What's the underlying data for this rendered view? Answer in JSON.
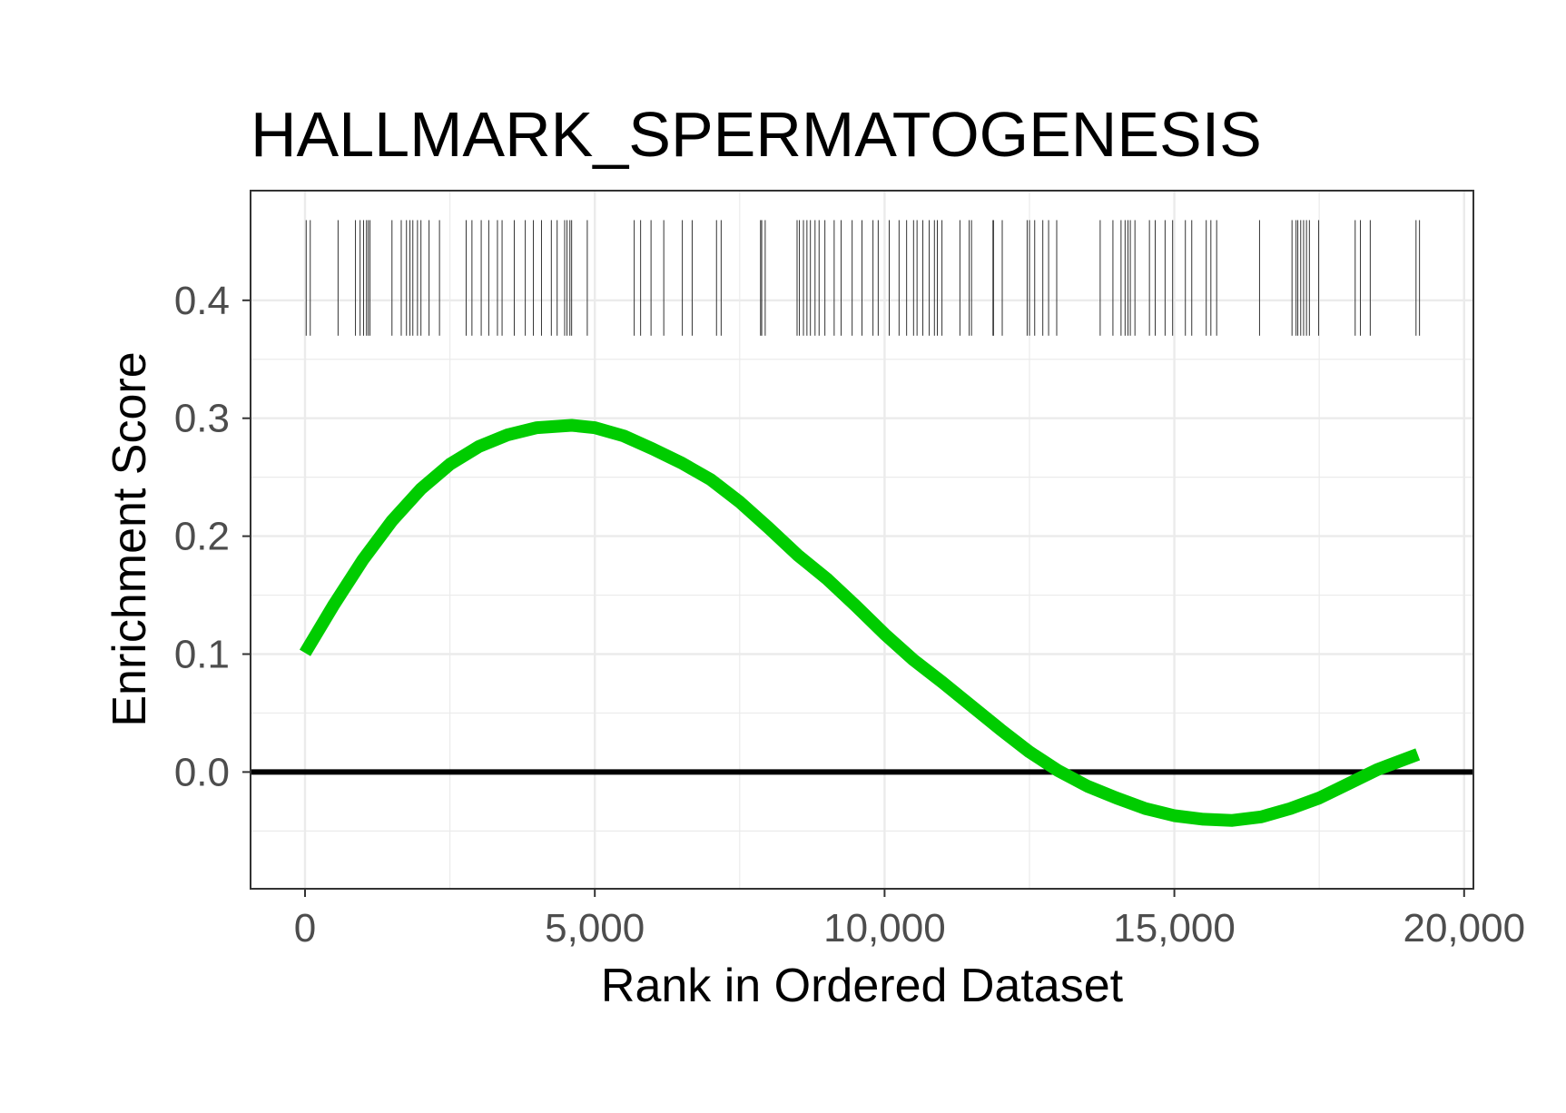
{
  "chart_data": {
    "type": "line",
    "title": "HALLMARK_SPERMATOGENESIS",
    "xlabel": "Rank in Ordered Dataset",
    "ylabel": "Enrichment Score",
    "xlim": [
      -940,
      20160
    ],
    "ylim": [
      -0.099,
      0.493
    ],
    "x_ticks": [
      0,
      5000,
      10000,
      15000,
      20000
    ],
    "x_tick_labels": [
      "0",
      "5,000",
      "10,000",
      "15,000",
      "20,000"
    ],
    "y_ticks": [
      0.0,
      0.1,
      0.2,
      0.3,
      0.4
    ],
    "y_tick_labels": [
      "0.0",
      "0.1",
      "0.2",
      "0.3",
      "0.4"
    ],
    "grid": true,
    "zero_line": 0.0,
    "series": [
      {
        "color": "#00CC00",
        "x": [
          0,
          500,
          1000,
          1500,
          2000,
          2500,
          3000,
          3500,
          4000,
          4600,
          5000,
          5500,
          6000,
          6500,
          7000,
          7500,
          8000,
          8500,
          9000,
          9500,
          10000,
          10500,
          11000,
          11500,
          12000,
          12500,
          13000,
          13500,
          14000,
          14500,
          15000,
          15500,
          16000,
          16500,
          17000,
          17500,
          18000,
          18500,
          19200
        ],
        "y": [
          0.101,
          0.142,
          0.18,
          0.213,
          0.24,
          0.261,
          0.276,
          0.286,
          0.292,
          0.294,
          0.292,
          0.285,
          0.274,
          0.262,
          0.248,
          0.229,
          0.207,
          0.184,
          0.164,
          0.141,
          0.117,
          0.095,
          0.076,
          0.056,
          0.036,
          0.017,
          0.001,
          -0.012,
          -0.022,
          -0.031,
          -0.037,
          -0.04,
          -0.041,
          -0.038,
          -0.031,
          -0.022,
          -0.01,
          0.002,
          0.015
        ]
      }
    ],
    "hit_ranks": [
      20,
      90,
      570,
      870,
      950,
      1010,
      1060,
      1090,
      1120,
      1500,
      1660,
      1750,
      1810,
      1860,
      1940,
      2000,
      2140,
      2320,
      2780,
      2880,
      3040,
      3170,
      3320,
      3400,
      3610,
      3800,
      3940,
      4080,
      4250,
      4350,
      4480,
      4520,
      4570,
      4600,
      4870,
      5680,
      5790,
      5970,
      6190,
      6510,
      6680,
      7100,
      7180,
      7860,
      7880,
      7940,
      8490,
      8530,
      8600,
      8660,
      8720,
      8800,
      8870,
      8970,
      9130,
      9250,
      9440,
      9610,
      9800,
      9890,
      10080,
      10250,
      10380,
      10500,
      10560,
      10660,
      10770,
      10860,
      10910,
      10990,
      11300,
      11460,
      11500,
      11870,
      11880,
      12030,
      12460,
      12500,
      12590,
      12730,
      12830,
      12970,
      13720,
      13940,
      14080,
      14150,
      14200,
      14240,
      14320,
      14570,
      14670,
      14840,
      14970,
      15190,
      15300,
      15550,
      15630,
      15730,
      16470,
      17030,
      17100,
      17130,
      17180,
      17230,
      17280,
      17330,
      17490,
      18120,
      18210,
      18380,
      19170,
      19230
    ],
    "hit_y_range": [
      0.37,
      0.468
    ]
  }
}
